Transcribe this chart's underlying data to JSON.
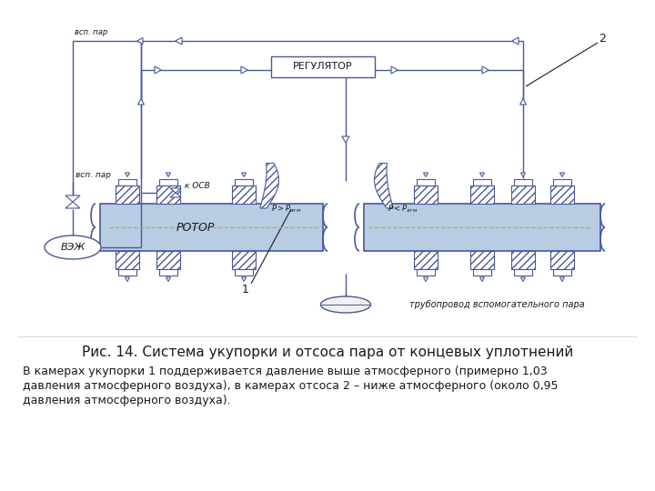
{
  "title": "Рис. 14. Система укупорки и отсоса пара от концевых уплотнений",
  "caption_line1": "В камерах укупорки 1 поддерживается давление выше атмосферного (примерно 1,03",
  "caption_line2": "давления атмосферного воздуха), в камерах отсоса 2 – ниже атмосферного (около 0,95",
  "caption_line3": "давления атмосферного воздуха).",
  "bg_color": "#ffffff",
  "lc": "#4a5896",
  "lc_dark": "#2a3870",
  "rotor_fill": "#b8cce4",
  "rotor_line": "#4a5896",
  "text_color": "#1a1a1a",
  "gray_line": "#888888"
}
